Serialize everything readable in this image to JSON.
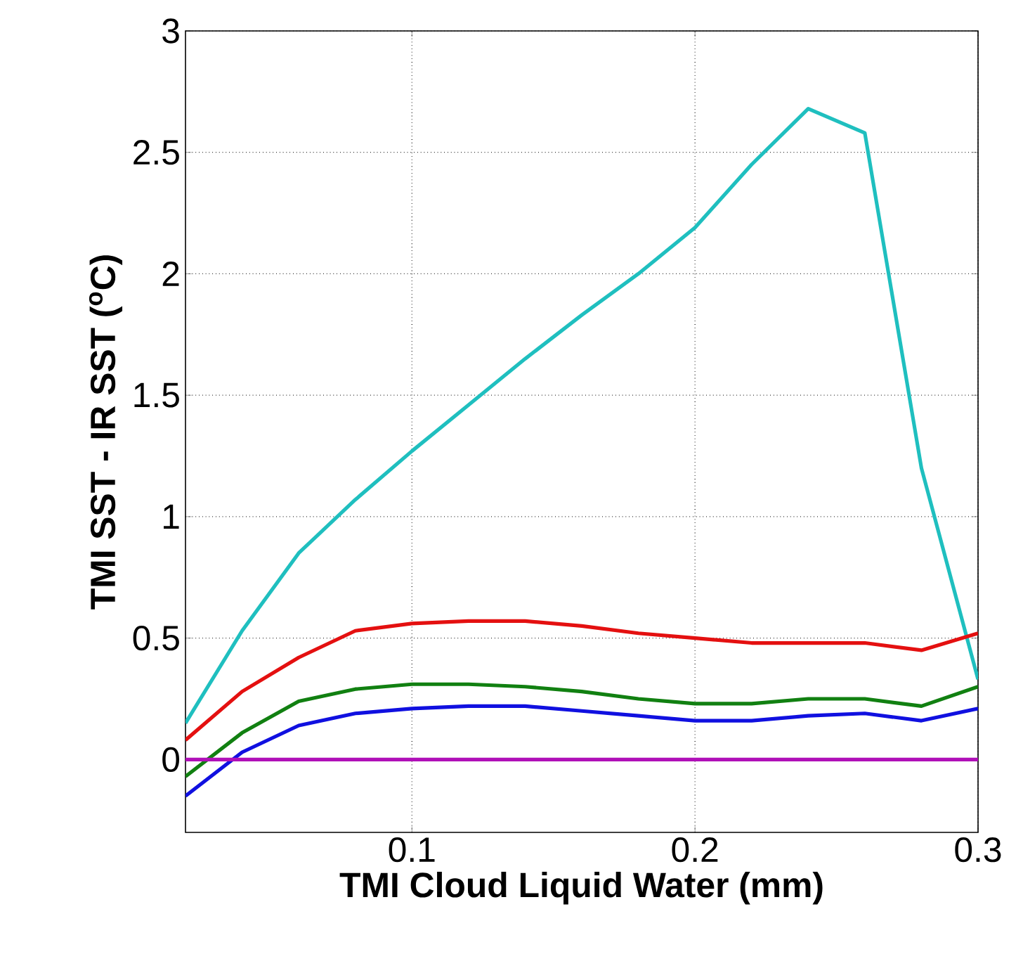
{
  "chart_data": {
    "type": "line",
    "xlabel": "TMI Cloud Liquid Water (mm)",
    "ylabel": "TMI SST - IR SST ($^{o}$C)",
    "x": [
      0.02,
      0.04,
      0.06,
      0.08,
      0.1,
      0.12,
      0.14,
      0.16,
      0.18,
      0.2,
      0.22,
      0.24,
      0.26,
      0.28,
      0.3
    ],
    "series": [
      {
        "color": "#1fbfbf",
        "values": [
          0.15,
          0.53,
          0.85,
          1.07,
          1.27,
          1.46,
          1.65,
          1.83,
          2.0,
          2.19,
          2.45,
          2.68,
          2.58,
          1.2,
          0.33
        ]
      },
      {
        "color": "#e41010",
        "values": [
          0.08,
          0.28,
          0.42,
          0.53,
          0.56,
          0.57,
          0.57,
          0.55,
          0.52,
          0.5,
          0.48,
          0.48,
          0.48,
          0.45,
          0.52
        ]
      },
      {
        "color": "#118011",
        "values": [
          -0.07,
          0.11,
          0.24,
          0.29,
          0.31,
          0.31,
          0.3,
          0.28,
          0.25,
          0.23,
          0.23,
          0.25,
          0.25,
          0.22,
          0.3
        ]
      },
      {
        "color": "#1010e0",
        "values": [
          -0.15,
          0.03,
          0.14,
          0.19,
          0.21,
          0.22,
          0.22,
          0.2,
          0.18,
          0.16,
          0.16,
          0.18,
          0.19,
          0.16,
          0.21
        ]
      },
      {
        "color": "#b010b8",
        "values": [
          0,
          0,
          0,
          0,
          0,
          0,
          0,
          0,
          0,
          0,
          0,
          0,
          0,
          0,
          0
        ]
      }
    ],
    "xlim": [
      0.02,
      0.3
    ],
    "ylim": [
      -0.3,
      3
    ],
    "xticks": [
      0.1,
      0.2,
      0.3
    ],
    "yticks": [
      0,
      0.5,
      1,
      1.5,
      2,
      2.5,
      3
    ],
    "grid": true,
    "line_style": "solid",
    "marker": "none"
  }
}
